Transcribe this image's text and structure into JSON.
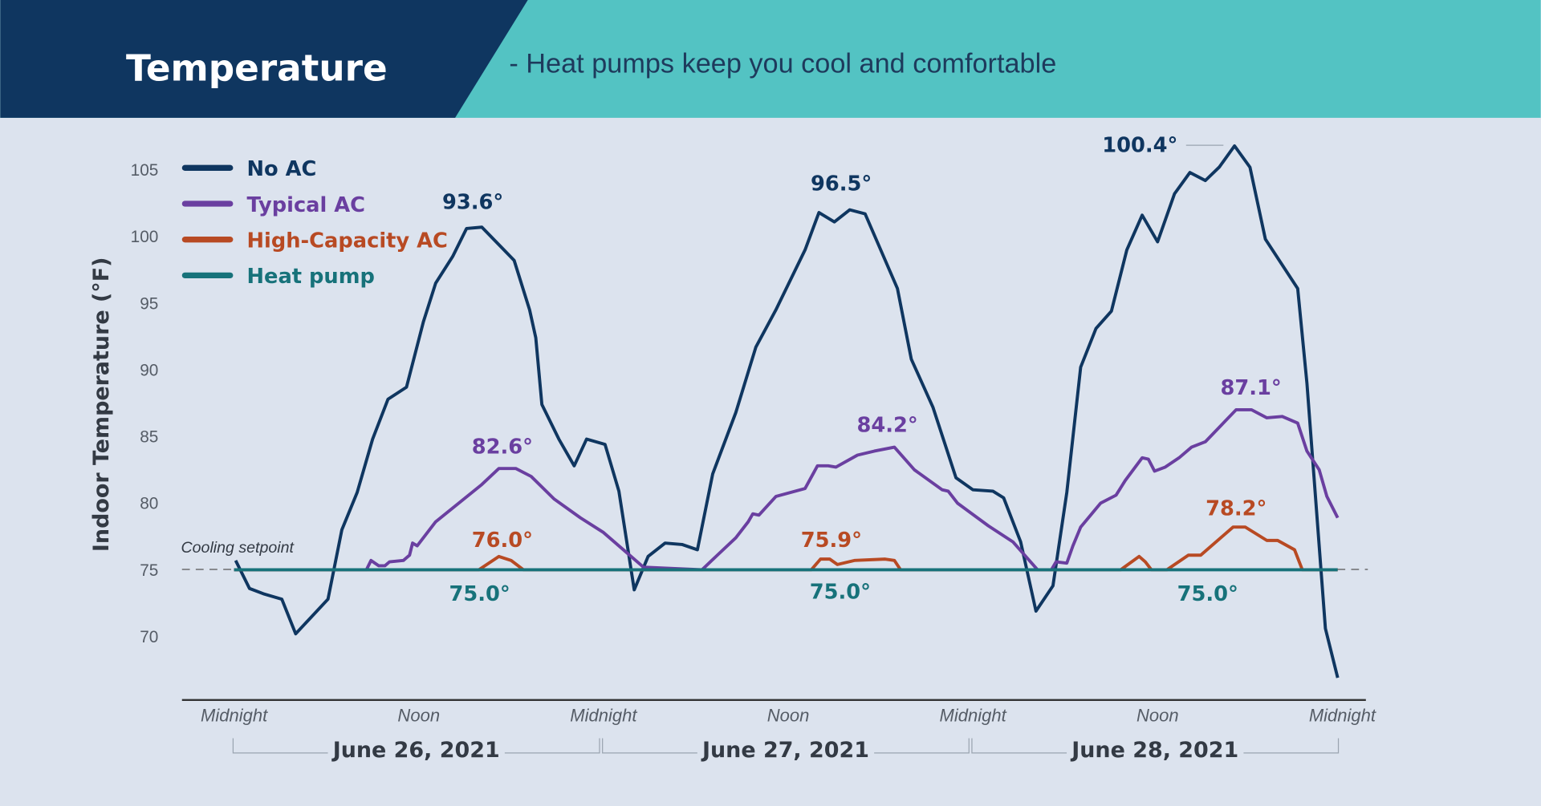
{
  "header": {
    "title": "Temperature",
    "subtitle": "- Heat pumps keep you cool and comfortable",
    "colors": {
      "title_bg": "#0f3660",
      "subtitle_bg": "#53c3c3",
      "page_bg": "#dce3ee"
    }
  },
  "chart_data": {
    "type": "line",
    "ylabel": "Indoor Temperature (°F)",
    "xlabel": "",
    "yticks": [
      "105",
      "100",
      "95",
      "90",
      "85",
      "80",
      "75",
      "70"
    ],
    "ylim": [
      65.2,
      108
    ],
    "x_unit": "hours from midnight June 26, 2021",
    "xlim": [
      0,
      72
    ],
    "xticks": [
      {
        "h": 0,
        "label": "Midnight"
      },
      {
        "h": 12,
        "label": "Noon"
      },
      {
        "h": 24,
        "label": "Midnight"
      },
      {
        "h": 36,
        "label": "Noon"
      },
      {
        "h": 48,
        "label": "Midnight"
      },
      {
        "h": 60,
        "label": "Noon"
      },
      {
        "h": 72,
        "label": "Midnight"
      }
    ],
    "days": [
      "June 26, 2021",
      "June 27, 2021",
      "June 28, 2021"
    ],
    "setpoint": {
      "label": "Cooling setpoint",
      "value": 75
    },
    "legend_position": "top-left",
    "grid": false,
    "series": [
      {
        "name": "No AC",
        "color": "#0f3660",
        "points": [
          [
            0.1,
            75.7
          ],
          [
            1.0,
            73.6
          ],
          [
            1.9,
            73.2
          ],
          [
            3.1,
            72.8
          ],
          [
            4.0,
            70.2
          ],
          [
            6.1,
            72.8
          ],
          [
            7.0,
            78.0
          ],
          [
            8.0,
            80.8
          ],
          [
            9.0,
            84.8
          ],
          [
            10.0,
            87.8
          ],
          [
            11.2,
            88.7
          ],
          [
            12.3,
            93.6
          ],
          [
            13.1,
            96.5
          ],
          [
            14.2,
            98.5
          ],
          [
            15.1,
            100.6
          ],
          [
            16.1,
            100.7
          ],
          [
            18.2,
            98.2
          ],
          [
            19.2,
            94.5
          ],
          [
            19.6,
            92.4
          ],
          [
            20.0,
            87.4
          ],
          [
            21.1,
            84.8
          ],
          [
            22.1,
            82.8
          ],
          [
            22.9,
            84.8
          ],
          [
            24.1,
            84.4
          ],
          [
            25.0,
            80.9
          ],
          [
            26.0,
            73.5
          ],
          [
            26.9,
            76.0
          ],
          [
            28.0,
            77.0
          ],
          [
            29.1,
            76.9
          ],
          [
            30.1,
            76.5
          ],
          [
            31.1,
            82.2
          ],
          [
            32.6,
            86.8
          ],
          [
            33.9,
            91.7
          ],
          [
            35.2,
            94.5
          ],
          [
            37.1,
            99.0
          ],
          [
            38.0,
            101.8
          ],
          [
            39.0,
            101.1
          ],
          [
            40.0,
            102.0
          ],
          [
            41.0,
            101.7
          ],
          [
            43.1,
            96.1
          ],
          [
            44.0,
            90.8
          ],
          [
            45.4,
            87.2
          ],
          [
            46.9,
            81.9
          ],
          [
            48.0,
            81.0
          ],
          [
            49.3,
            80.9
          ],
          [
            50.0,
            80.4
          ],
          [
            51.1,
            77.1
          ],
          [
            52.1,
            71.9
          ],
          [
            53.2,
            73.8
          ],
          [
            54.1,
            80.8
          ],
          [
            55.0,
            90.2
          ],
          [
            56.0,
            93.1
          ],
          [
            57.0,
            94.4
          ],
          [
            58.0,
            99.0
          ],
          [
            59.0,
            101.6
          ],
          [
            60.0,
            99.6
          ],
          [
            61.1,
            103.2
          ],
          [
            62.1,
            104.8
          ],
          [
            63.1,
            104.2
          ],
          [
            64.0,
            105.2
          ],
          [
            65.0,
            106.8
          ],
          [
            66.0,
            105.2
          ],
          [
            67.0,
            99.8
          ],
          [
            69.1,
            96.1
          ],
          [
            69.7,
            89.0
          ],
          [
            70.9,
            70.6
          ],
          [
            71.7,
            66.9
          ]
        ]
      },
      {
        "name": "Typical AC",
        "color": "#6a3fa0",
        "points": [
          [
            0,
            75.0
          ],
          [
            8.6,
            75.0
          ],
          [
            8.9,
            75.7
          ],
          [
            9.4,
            75.3
          ],
          [
            9.8,
            75.3
          ],
          [
            10.1,
            75.6
          ],
          [
            11.0,
            75.7
          ],
          [
            11.4,
            76.1
          ],
          [
            11.6,
            77.0
          ],
          [
            11.9,
            76.8
          ],
          [
            13.1,
            78.6
          ],
          [
            14.6,
            80.0
          ],
          [
            16.1,
            81.4
          ],
          [
            17.2,
            82.6
          ],
          [
            18.3,
            82.6
          ],
          [
            19.3,
            82.0
          ],
          [
            20.8,
            80.3
          ],
          [
            22.5,
            78.9
          ],
          [
            24.0,
            77.8
          ],
          [
            25.7,
            76.1
          ],
          [
            26.6,
            75.2
          ],
          [
            30.4,
            75.0
          ],
          [
            31.4,
            76.1
          ],
          [
            32.6,
            77.4
          ],
          [
            33.4,
            78.6
          ],
          [
            33.7,
            79.2
          ],
          [
            34.1,
            79.1
          ],
          [
            35.2,
            80.5
          ],
          [
            37.1,
            81.1
          ],
          [
            37.9,
            82.8
          ],
          [
            38.6,
            82.8
          ],
          [
            39.1,
            82.7
          ],
          [
            40.5,
            83.6
          ],
          [
            41.6,
            83.9
          ],
          [
            42.9,
            84.2
          ],
          [
            44.2,
            82.5
          ],
          [
            46.0,
            81.0
          ],
          [
            46.4,
            80.9
          ],
          [
            47.0,
            80.0
          ],
          [
            49.0,
            78.3
          ],
          [
            50.6,
            77.1
          ],
          [
            52.2,
            75.0
          ],
          [
            53.1,
            75.0
          ],
          [
            53.4,
            75.6
          ],
          [
            54.1,
            75.5
          ],
          [
            54.5,
            76.8
          ],
          [
            55.0,
            78.2
          ],
          [
            56.3,
            80.0
          ],
          [
            57.3,
            80.6
          ],
          [
            57.9,
            81.7
          ],
          [
            59.0,
            83.4
          ],
          [
            59.4,
            83.3
          ],
          [
            59.8,
            82.4
          ],
          [
            60.5,
            82.7
          ],
          [
            61.4,
            83.4
          ],
          [
            62.2,
            84.2
          ],
          [
            63.1,
            84.6
          ],
          [
            65.1,
            87.0
          ],
          [
            66.1,
            87.0
          ],
          [
            67.1,
            86.4
          ],
          [
            68.1,
            86.5
          ],
          [
            69.1,
            86.0
          ],
          [
            69.7,
            83.9
          ],
          [
            70.5,
            82.5
          ],
          [
            71.0,
            80.5
          ],
          [
            71.7,
            78.9
          ]
        ]
      },
      {
        "name": "High-Capacity AC",
        "color": "#b84a23",
        "points": [
          [
            0,
            75.0
          ],
          [
            15.9,
            75.0
          ],
          [
            17.2,
            76.0
          ],
          [
            18.0,
            75.7
          ],
          [
            18.8,
            75.0
          ],
          [
            37.5,
            75.0
          ],
          [
            38.1,
            75.8
          ],
          [
            38.7,
            75.8
          ],
          [
            39.2,
            75.4
          ],
          [
            40.3,
            75.7
          ],
          [
            42.3,
            75.8
          ],
          [
            42.9,
            75.7
          ],
          [
            43.3,
            75.0
          ],
          [
            57.6,
            75.0
          ],
          [
            58.8,
            76.0
          ],
          [
            59.2,
            75.6
          ],
          [
            59.6,
            75.0
          ],
          [
            60.6,
            75.0
          ],
          [
            62.0,
            76.1
          ],
          [
            62.8,
            76.1
          ],
          [
            64.9,
            78.2
          ],
          [
            65.7,
            78.2
          ],
          [
            67.1,
            77.2
          ],
          [
            67.8,
            77.2
          ],
          [
            68.9,
            76.5
          ],
          [
            69.4,
            75.0
          ],
          [
            71.7,
            75.0
          ]
        ]
      },
      {
        "name": "Heat pump",
        "color": "#17727a",
        "points": [
          [
            0,
            75.0
          ],
          [
            71.7,
            75.0
          ]
        ]
      }
    ],
    "annotations": [
      {
        "text": "93.6°",
        "series": "No AC",
        "color": "#0f3660"
      },
      {
        "text": "96.5°",
        "series": "No AC",
        "color": "#0f3660"
      },
      {
        "text": "100.4°",
        "series": "No AC",
        "color": "#0f3660"
      },
      {
        "text": "82.6°",
        "series": "Typical AC",
        "color": "#6a3fa0"
      },
      {
        "text": "84.2°",
        "series": "Typical AC",
        "color": "#6a3fa0"
      },
      {
        "text": "87.1°",
        "series": "Typical AC",
        "color": "#6a3fa0"
      },
      {
        "text": "76.0°",
        "series": "High-Capacity AC",
        "color": "#b84a23"
      },
      {
        "text": "75.9°",
        "series": "High-Capacity AC",
        "color": "#b84a23"
      },
      {
        "text": "78.2°",
        "series": "High-Capacity AC",
        "color": "#b84a23"
      },
      {
        "text": "75.0°",
        "series": "Heat pump",
        "color": "#17727a"
      },
      {
        "text": "75.0°",
        "series": "Heat pump",
        "color": "#17727a"
      },
      {
        "text": "75.0°",
        "series": "Heat pump",
        "color": "#17727a"
      }
    ]
  }
}
